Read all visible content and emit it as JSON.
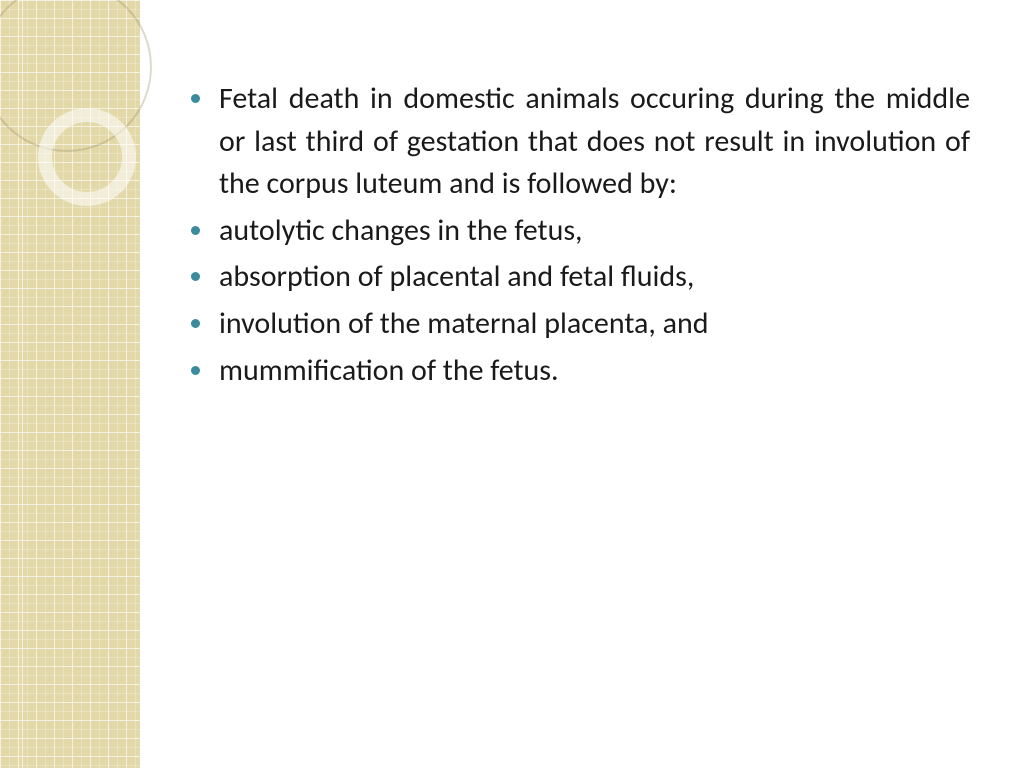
{
  "theme": {
    "sidebar_bg": "#e3d8a8",
    "bullet_color": "#3b8a9e",
    "text_color": "#1a1a1a",
    "body_bg": "#ffffff",
    "grid_line": "rgba(255,255,255,0.5)"
  },
  "slide": {
    "bullets": [
      {
        "text": "Fetal death in domestic animals occuring during the middle or last third of gestation that does not result in involution of the corpus luteum and is followed by:",
        "justify": true
      },
      {
        "text": "autolytic changes in the fetus,",
        "justify": false
      },
      {
        "text": "absorption of placental and fetal fluids,",
        "justify": false
      },
      {
        "text": "involution of the maternal placenta, and",
        "justify": false
      },
      {
        "text": "mummification of the fetus.",
        "justify": false
      }
    ]
  },
  "typography": {
    "font_family": "Segoe UI / Gill Sans",
    "font_size": 30,
    "line_height": 1.42
  }
}
